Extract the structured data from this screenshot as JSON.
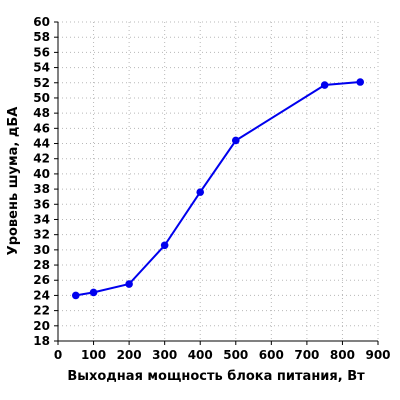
{
  "chart_data": {
    "type": "line",
    "xlabel": "Выходная мощность блока питания, Вт",
    "ylabel": "Уровень шума, дБА",
    "xlim": [
      0,
      900
    ],
    "ylim": [
      18,
      60
    ],
    "x_ticks": [
      "0",
      "100",
      "200",
      "300",
      "400",
      "500",
      "600",
      "700",
      "800",
      "900"
    ],
    "y_ticks": [
      "18",
      "20",
      "22",
      "24",
      "26",
      "28",
      "30",
      "32",
      "34",
      "36",
      "38",
      "40",
      "42",
      "44",
      "46",
      "48",
      "50",
      "52",
      "54",
      "56",
      "58",
      "60"
    ],
    "grid": true,
    "series": [
      {
        "color": "#0000ee",
        "x": [
          50,
          100,
          200,
          300,
          400,
          500,
          750,
          850
        ],
        "y": [
          24.0,
          24.4,
          25.5,
          30.6,
          37.6,
          44.4,
          51.7,
          52.1
        ]
      }
    ]
  }
}
